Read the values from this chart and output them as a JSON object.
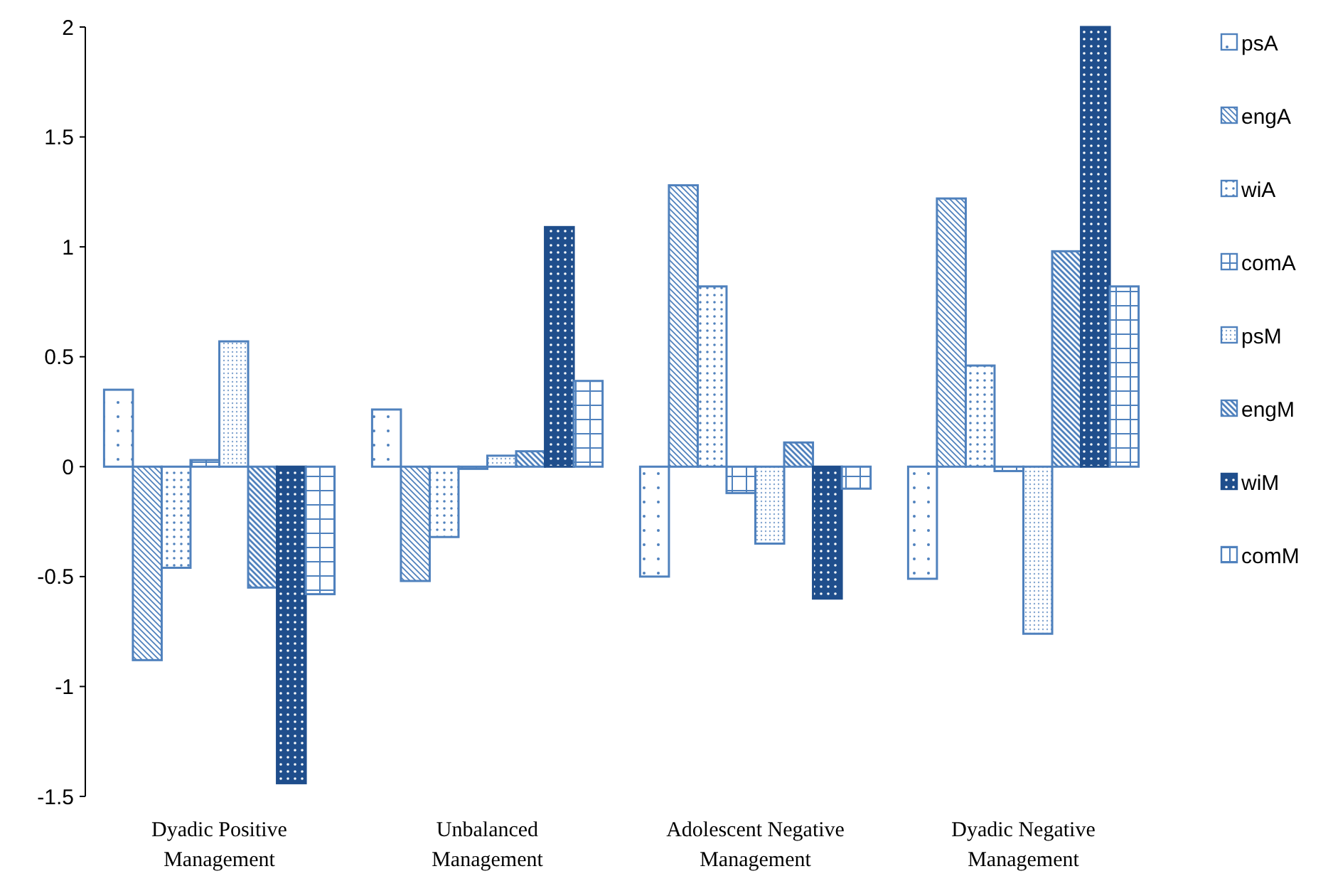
{
  "chart_data": {
    "type": "bar",
    "categories": [
      "Dyadic Positive Management",
      "Unbalanced Management",
      "Adolescent Negative Management",
      "Dyadic Negative Management"
    ],
    "series": [
      {
        "name": "psA",
        "color": "#4f81bd",
        "values": [
          0.35,
          0.26,
          -0.5,
          -0.51
        ]
      },
      {
        "name": "engA",
        "color": "#4f81bd",
        "values": [
          -0.88,
          -0.52,
          1.28,
          1.22
        ]
      },
      {
        "name": "wiA",
        "color": "#4f81bd",
        "values": [
          -0.46,
          -0.32,
          0.82,
          0.46
        ]
      },
      {
        "name": "comA",
        "color": "#4f81bd",
        "values": [
          0.03,
          -0.01,
          -0.12,
          -0.02
        ]
      },
      {
        "name": "psM",
        "color": "#4f81bd",
        "values": [
          0.57,
          0.05,
          -0.35,
          -0.76
        ]
      },
      {
        "name": "engM",
        "color": "#4f81bd",
        "values": [
          -0.55,
          0.07,
          0.11,
          0.98
        ]
      },
      {
        "name": "wiM",
        "color": "#1f4e8c",
        "values": [
          -1.44,
          1.09,
          -0.6,
          2.0
        ]
      },
      {
        "name": "comM",
        "color": "#4f81bd",
        "values": [
          -0.58,
          0.39,
          -0.1,
          0.82
        ]
      }
    ],
    "ylim": [
      -1.5,
      2
    ],
    "yticks": [
      -1.5,
      -1,
      -0.5,
      0,
      0.5,
      1,
      1.5,
      2
    ],
    "grid": false,
    "legend": "right"
  }
}
